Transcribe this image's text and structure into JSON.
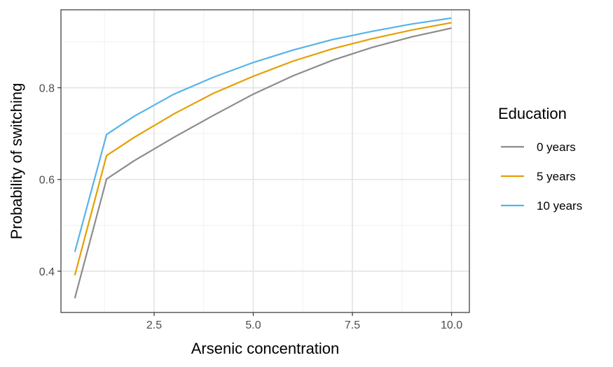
{
  "chart_data": {
    "type": "line",
    "title": "",
    "xlabel": "Arsenic concentration",
    "ylabel": "Probability of switching",
    "xlim": [
      0.15,
      10.45
    ],
    "ylim": [
      0.31,
      0.97
    ],
    "xticks": [
      2.5,
      5.0,
      7.5,
      10.0
    ],
    "xtick_labels": [
      "2.5",
      "5.0",
      "7.5",
      "10.0"
    ],
    "yticks": [
      0.4,
      0.6,
      0.8
    ],
    "ytick_labels": [
      "0.4",
      "0.6",
      "0.8"
    ],
    "grid": true,
    "legend": {
      "title": "Education",
      "position": "right"
    },
    "series": [
      {
        "name": "0 years",
        "color": "#8c8c8c",
        "x": [
          0.5,
          1.3,
          2.0,
          3.0,
          4.0,
          5.0,
          6.0,
          7.0,
          8.0,
          9.0,
          10.0
        ],
        "y": [
          0.341,
          0.601,
          0.641,
          0.692,
          0.74,
          0.786,
          0.826,
          0.86,
          0.888,
          0.911,
          0.93
        ]
      },
      {
        "name": "5 years",
        "color": "#e69f00",
        "x": [
          0.5,
          1.3,
          2.0,
          3.0,
          4.0,
          5.0,
          6.0,
          7.0,
          8.0,
          9.0,
          10.0
        ],
        "y": [
          0.391,
          0.652,
          0.692,
          0.743,
          0.788,
          0.825,
          0.858,
          0.885,
          0.907,
          0.926,
          0.942
        ]
      },
      {
        "name": "10 years",
        "color": "#56b4e9",
        "x": [
          0.5,
          1.3,
          2.0,
          3.0,
          4.0,
          5.0,
          6.0,
          7.0,
          8.0,
          9.0,
          10.0
        ],
        "y": [
          0.442,
          0.698,
          0.738,
          0.786,
          0.823,
          0.855,
          0.882,
          0.905,
          0.923,
          0.939,
          0.952
        ]
      }
    ]
  }
}
